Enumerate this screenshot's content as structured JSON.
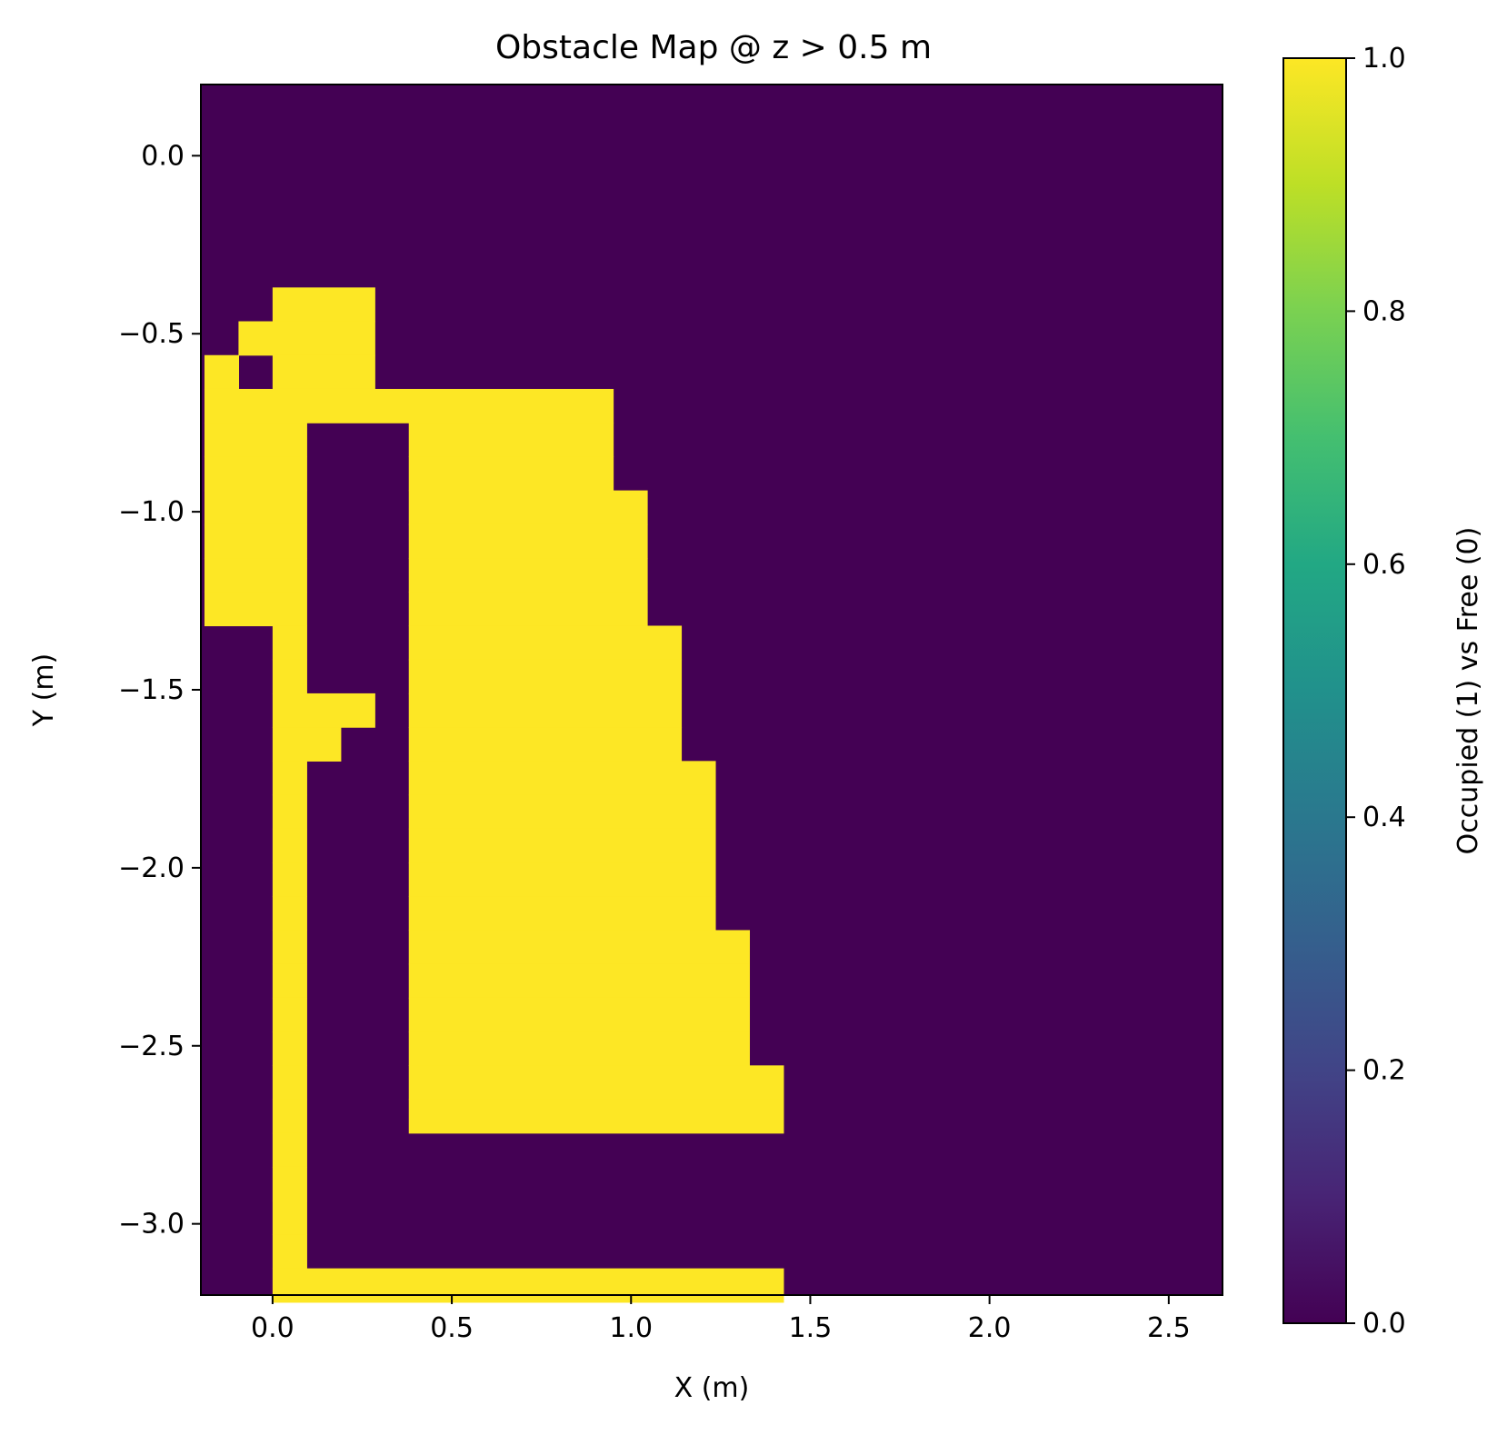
{
  "chart_data": {
    "type": "heatmap",
    "title": "Obstacle Map @ z > 0.5 m",
    "xlabel": "X (m)",
    "ylabel": "Y (m)",
    "colorbar_label": "Occupied (1) vs Free (0)",
    "colormap": "viridis",
    "colors": {
      "free": "#440154",
      "occupied": "#fde725"
    },
    "xlim": [
      -0.2,
      2.65
    ],
    "ylim": [
      -3.2,
      0.2
    ],
    "x_ticks": [
      0.0,
      0.5,
      1.0,
      1.5,
      2.0,
      2.5
    ],
    "x_tick_labels": [
      "0.0",
      "0.5",
      "1.0",
      "1.5",
      "2.0",
      "2.5"
    ],
    "y_ticks": [
      0.0,
      -0.5,
      -1.0,
      -1.5,
      -2.0,
      -2.5,
      -3.0
    ],
    "y_tick_labels": [
      "0.0",
      "−0.5",
      "−1.0",
      "−1.5",
      "−2.0",
      "−2.5",
      "−3.0"
    ],
    "colorbar_ticks": [
      0.0,
      0.2,
      0.4,
      0.6,
      0.8,
      1.0
    ],
    "colorbar_tick_labels": [
      "0.0",
      "0.2",
      "0.4",
      "0.6",
      "0.8",
      "1.0"
    ],
    "cell_size": 0.095,
    "grid_origin": {
      "x": -0.19,
      "y": 0.2
    },
    "occupied_cells": [
      {
        "row": 6,
        "cols": [
          2,
          3,
          4
        ]
      },
      {
        "row": 7,
        "cols": [
          1,
          2,
          3,
          4
        ]
      },
      {
        "row": 8,
        "cols": [
          0,
          2,
          3,
          4
        ]
      },
      {
        "row": 9,
        "cols": [
          0,
          1,
          2,
          3,
          4,
          5,
          6,
          7,
          8,
          9,
          10,
          11
        ]
      },
      {
        "row": 10,
        "cols": [
          0,
          1,
          2,
          6,
          7,
          8,
          9,
          10,
          11
        ]
      },
      {
        "row": 11,
        "cols": [
          0,
          1,
          2,
          6,
          7,
          8,
          9,
          10,
          11
        ]
      },
      {
        "row": 12,
        "cols": [
          0,
          1,
          2,
          6,
          7,
          8,
          9,
          10,
          11,
          12
        ]
      },
      {
        "row": 13,
        "cols": [
          0,
          1,
          2,
          6,
          7,
          8,
          9,
          10,
          11,
          12
        ]
      },
      {
        "row": 14,
        "cols": [
          0,
          1,
          2,
          6,
          7,
          8,
          9,
          10,
          11,
          12
        ]
      },
      {
        "row": 15,
        "cols": [
          0,
          1,
          2,
          6,
          7,
          8,
          9,
          10,
          11,
          12
        ]
      },
      {
        "row": 16,
        "cols": [
          2,
          6,
          7,
          8,
          9,
          10,
          11,
          12,
          13
        ]
      },
      {
        "row": 17,
        "cols": [
          2,
          6,
          7,
          8,
          9,
          10,
          11,
          12,
          13
        ]
      },
      {
        "row": 18,
        "cols": [
          2,
          3,
          4,
          6,
          7,
          8,
          9,
          10,
          11,
          12,
          13
        ]
      },
      {
        "row": 19,
        "cols": [
          2,
          3,
          6,
          7,
          8,
          9,
          10,
          11,
          12,
          13
        ]
      },
      {
        "row": 20,
        "cols": [
          2,
          6,
          7,
          8,
          9,
          10,
          11,
          12,
          13,
          14
        ]
      },
      {
        "row": 21,
        "cols": [
          2,
          6,
          7,
          8,
          9,
          10,
          11,
          12,
          13,
          14
        ]
      },
      {
        "row": 22,
        "cols": [
          2,
          6,
          7,
          8,
          9,
          10,
          11,
          12,
          13,
          14
        ]
      },
      {
        "row": 23,
        "cols": [
          2,
          6,
          7,
          8,
          9,
          10,
          11,
          12,
          13,
          14
        ]
      },
      {
        "row": 24,
        "cols": [
          2,
          6,
          7,
          8,
          9,
          10,
          11,
          12,
          13,
          14
        ]
      },
      {
        "row": 25,
        "cols": [
          2,
          6,
          7,
          8,
          9,
          10,
          11,
          12,
          13,
          14,
          15
        ]
      },
      {
        "row": 26,
        "cols": [
          2,
          6,
          7,
          8,
          9,
          10,
          11,
          12,
          13,
          14,
          15
        ]
      },
      {
        "row": 27,
        "cols": [
          2,
          6,
          7,
          8,
          9,
          10,
          11,
          12,
          13,
          14,
          15
        ]
      },
      {
        "row": 28,
        "cols": [
          2,
          6,
          7,
          8,
          9,
          10,
          11,
          12,
          13,
          14,
          15
        ]
      },
      {
        "row": 29,
        "cols": [
          2,
          6,
          7,
          8,
          9,
          10,
          11,
          12,
          13,
          14,
          15,
          16
        ]
      },
      {
        "row": 30,
        "cols": [
          2,
          6,
          7,
          8,
          9,
          10,
          11,
          12,
          13,
          14,
          15,
          16
        ]
      },
      {
        "row": 31,
        "cols": [
          2
        ]
      },
      {
        "row": 32,
        "cols": [
          2
        ]
      },
      {
        "row": 33,
        "cols": [
          2
        ]
      },
      {
        "row": 34,
        "cols": [
          2
        ]
      },
      {
        "row": 35,
        "cols": [
          2,
          3,
          4,
          5,
          6,
          7,
          8,
          9,
          10,
          11,
          12,
          13,
          14,
          15,
          16
        ]
      }
    ]
  }
}
